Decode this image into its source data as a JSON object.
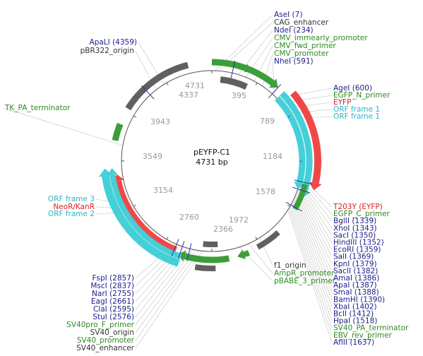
{
  "plasmid": {
    "name": "pEYFP-C1",
    "length": "4731 bp",
    "ticks": [
      4731,
      395,
      789,
      1184,
      1578,
      1972,
      2366,
      2760,
      3154,
      3549,
      3943,
      4337
    ],
    "labels": [
      {
        "text": "AseI (7)",
        "color": "#1c1c8a"
      },
      {
        "text": "CAG_enhancer",
        "color": "#333333"
      },
      {
        "text": "NdeI (234)",
        "color": "#1c1c8a"
      },
      {
        "text": "CMV_immearly_promoter",
        "color": "#2e8b22"
      },
      {
        "text": "CMV_fwd_primer",
        "color": "#2e8b22"
      },
      {
        "text": "CMV_promoter",
        "color": "#2e8b22"
      },
      {
        "text": "NheI (591)",
        "color": "#1c1c8a"
      },
      {
        "text": "AgeI (600)",
        "color": "#1c1c8a"
      },
      {
        "text": "EGFP_N_primer",
        "color": "#2e8b22"
      },
      {
        "text": "EYFP",
        "color": "#e02020"
      },
      {
        "text": "ORF frame 1",
        "color": "#2fb5c8"
      },
      {
        "text": "ORF frame 1",
        "color": "#2fb5c8"
      },
      {
        "text": "T203Y (EYFP)",
        "color": "#e02020"
      },
      {
        "text": "EGFP_C_primer",
        "color": "#2e8b22"
      },
      {
        "text": "BglII (1339)",
        "color": "#1c1c8a"
      },
      {
        "text": "XhoI (1343)",
        "color": "#1c1c8a"
      },
      {
        "text": "SacI (1350)",
        "color": "#1c1c8a"
      },
      {
        "text": "HindIII (1352)",
        "color": "#1c1c8a"
      },
      {
        "text": "EcoRI (1359)",
        "color": "#1c1c8a"
      },
      {
        "text": "SalI (1369)",
        "color": "#1c1c8a"
      },
      {
        "text": "KpnI (1379)",
        "color": "#1c1c8a"
      },
      {
        "text": "SacII (1382)",
        "color": "#1c1c8a"
      },
      {
        "text": "AmaI (1386)",
        "color": "#1c1c8a"
      },
      {
        "text": "ApaI (1387)",
        "color": "#1c1c8a"
      },
      {
        "text": "SmaI (1388)",
        "color": "#1c1c8a"
      },
      {
        "text": "BamHI (1390)",
        "color": "#1c1c8a"
      },
      {
        "text": "XbaI (1402)",
        "color": "#1c1c8a"
      },
      {
        "text": "BclI (1412)",
        "color": "#1c1c8a"
      },
      {
        "text": "HpaI (1518)",
        "color": "#1c1c8a"
      },
      {
        "text": "SV40_PA_terminator",
        "color": "#2e8b22"
      },
      {
        "text": "EBV_rev_primer",
        "color": "#2e8b22"
      },
      {
        "text": "AflII (1637)",
        "color": "#1c1c8a"
      },
      {
        "text": "ApaLI (4359)",
        "color": "#1c1c8a"
      },
      {
        "text": "pBR322_origin",
        "color": "#333333"
      },
      {
        "text": "TK_PA_terminator",
        "color": "#2e8b22"
      },
      {
        "text": "ORF frame 3",
        "color": "#2fb5c8"
      },
      {
        "text": "NeoR/KanR",
        "color": "#e02020"
      },
      {
        "text": "ORF frame 2",
        "color": "#2fb5c8"
      },
      {
        "text": "FspI (2857)",
        "color": "#1c1c8a"
      },
      {
        "text": "MscI (2837)",
        "color": "#1c1c8a"
      },
      {
        "text": "NarI (2755)",
        "color": "#1c1c8a"
      },
      {
        "text": "EagI (2661)",
        "color": "#1c1c8a"
      },
      {
        "text": "ClaI (2595)",
        "color": "#1c1c8a"
      },
      {
        "text": "StuI (2576)",
        "color": "#1c1c8a"
      },
      {
        "text": "SV40pro_F_primer",
        "color": "#2e8b22"
      },
      {
        "text": "SV40_origin",
        "color": "#333333"
      },
      {
        "text": "SV40_promoter",
        "color": "#2e8b22"
      },
      {
        "text": "SV40_enhancer",
        "color": "#333333"
      },
      {
        "text": "f1_origin",
        "color": "#333333"
      },
      {
        "text": "AmpR_promoter",
        "color": "#2e8b22"
      },
      {
        "text": "pBABE_3_primer",
        "color": "#2e8b22"
      }
    ]
  }
}
